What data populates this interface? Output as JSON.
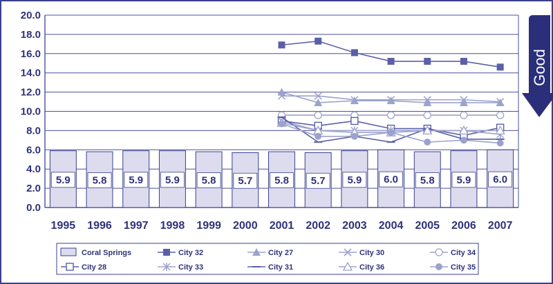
{
  "chart_data": {
    "type": "bar",
    "categories": [
      "1995",
      "1996",
      "1997",
      "1998",
      "1999",
      "2000",
      "2001",
      "2002",
      "2003",
      "2004",
      "2005",
      "2006",
      "2007"
    ],
    "ylim": [
      0,
      20
    ],
    "yticks": [
      "0.0",
      "2.0",
      "4.0",
      "6.0",
      "8.0",
      "10.0",
      "12.0",
      "14.0",
      "16.0",
      "18.0",
      "20.0"
    ],
    "grid": true,
    "legend_position": "bottom",
    "annotation": "Good",
    "bar_series": {
      "name": "Coral Springs",
      "values": [
        5.9,
        5.8,
        5.9,
        5.9,
        5.8,
        5.7,
        5.8,
        5.7,
        5.9,
        6.0,
        5.8,
        5.9,
        6.0
      ],
      "labels": [
        "5.9",
        "5.8",
        "5.9",
        "5.9",
        "5.8",
        "5.7",
        "5.8",
        "5.7",
        "5.9",
        "6.0",
        "5.8",
        "5.9",
        "6.0"
      ]
    },
    "line_series": [
      {
        "name": "City 32",
        "marker": "square-filled",
        "values": [
          null,
          null,
          null,
          null,
          null,
          null,
          16.9,
          17.3,
          16.1,
          15.2,
          15.2,
          15.2,
          14.6
        ]
      },
      {
        "name": "City 27",
        "marker": "triangle-filled",
        "values": [
          null,
          null,
          null,
          null,
          null,
          null,
          12.0,
          10.9,
          11.1,
          11.1,
          10.9,
          10.9,
          10.9
        ]
      },
      {
        "name": "City 30",
        "marker": "x",
        "values": [
          null,
          null,
          null,
          null,
          null,
          null,
          11.6,
          11.6,
          11.2,
          11.2,
          11.2,
          11.2,
          11.0
        ]
      },
      {
        "name": "City 34",
        "marker": "circle-open",
        "values": [
          null,
          null,
          null,
          null,
          null,
          null,
          9.6,
          9.6,
          9.6,
          9.6,
          9.6,
          9.6,
          9.6
        ]
      },
      {
        "name": "City 28",
        "marker": "square-open",
        "values": [
          null,
          null,
          null,
          null,
          null,
          null,
          9.0,
          8.5,
          9.0,
          8.2,
          8.2,
          7.5,
          8.3
        ]
      },
      {
        "name": "City 33",
        "marker": "star",
        "values": [
          null,
          null,
          null,
          null,
          null,
          null,
          9.0,
          8.0,
          8.0,
          8.0,
          8.0,
          8.0,
          7.6
        ]
      },
      {
        "name": "City 31",
        "marker": "dash",
        "values": [
          null,
          null,
          null,
          null,
          null,
          null,
          9.4,
          6.8,
          7.4,
          6.8,
          8.2,
          7.1,
          7.1
        ]
      },
      {
        "name": "City 36",
        "marker": "triangle-open",
        "values": [
          null,
          null,
          null,
          null,
          null,
          null,
          8.8,
          8.0,
          7.8,
          7.8,
          8.0,
          8.0,
          8.0
        ]
      },
      {
        "name": "City 35",
        "marker": "circle-filled",
        "values": [
          null,
          null,
          null,
          null,
          null,
          null,
          8.7,
          7.4,
          7.4,
          7.8,
          6.8,
          7.0,
          6.7
        ]
      }
    ]
  },
  "colors": {
    "axis": "#2e3278",
    "grid": "#4a4f9c",
    "bar_fill": "#dcdcee",
    "bar_stroke": "#3a3f8c",
    "label_box": "#ffffff",
    "arrow": "#2b2f7a",
    "line_dark": "#5a5fa8",
    "line_light": "#9da2cc"
  }
}
